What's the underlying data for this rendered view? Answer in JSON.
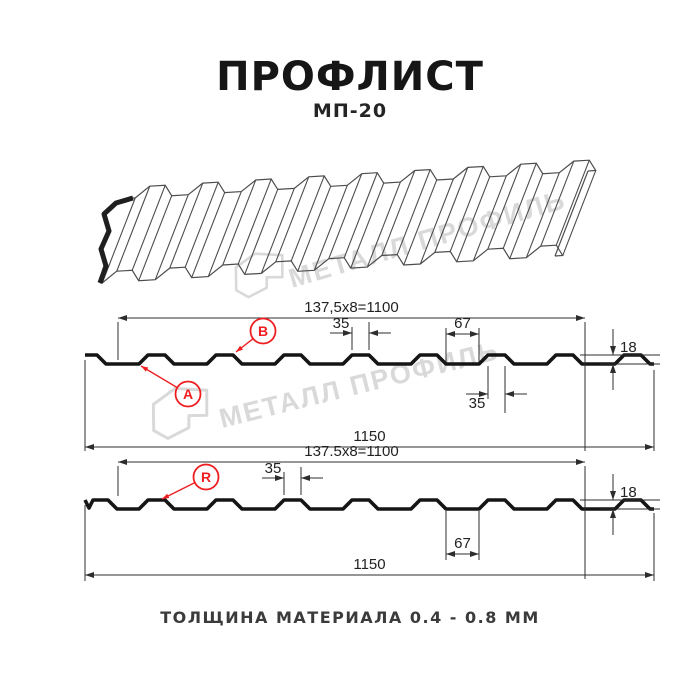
{
  "header": {
    "title": "ПРОФЛИСТ",
    "subtitle": "МП-20"
  },
  "footer": {
    "note": "ТОЛЩИНА МАТЕРИАЛА 0.4 - 0.8 ММ"
  },
  "watermark": {
    "text": "МЕТАЛЛ ПРОФИЛЬ",
    "color": "#d9d9d9"
  },
  "colors": {
    "ink": "#222222",
    "profile": "#151515",
    "dim": "#2d2d2d",
    "red": "#ef1e20",
    "sketch": "#4d4d4d"
  },
  "views": [
    {
      "name": "section-top",
      "module": "137,5x8=1100",
      "overall": "1150",
      "height": "18",
      "crest": "35",
      "valley": "67",
      "crest_bottom": "35",
      "callouts": [
        "A",
        "B"
      ]
    },
    {
      "name": "section-bottom",
      "module": "137.5x8=1100",
      "overall": "1150",
      "height": "18",
      "crest": "35",
      "valley": "67",
      "callouts": [
        "R"
      ]
    }
  ]
}
